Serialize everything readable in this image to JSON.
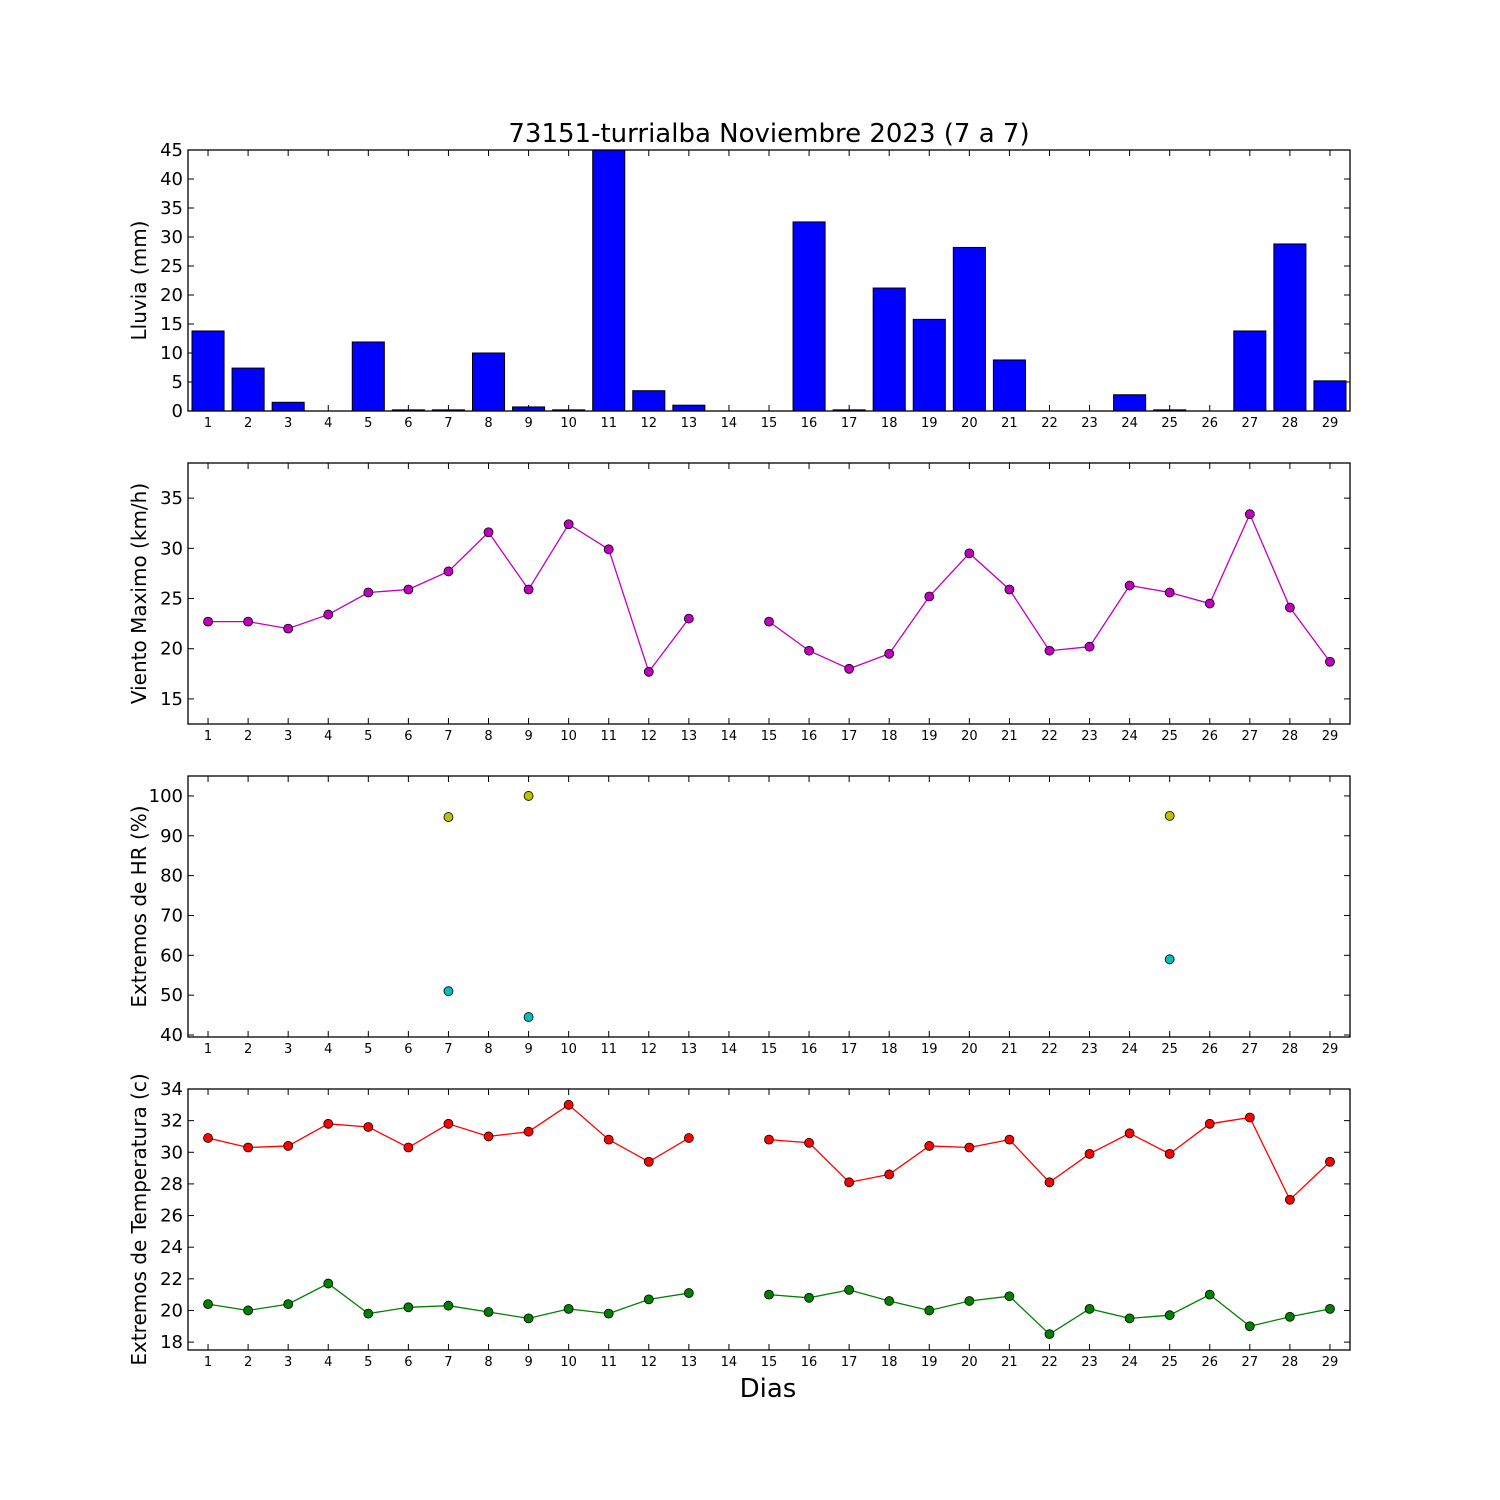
{
  "title": "73151-turrialba Noviembre 2023  (7 a 7)",
  "colors": {
    "rain_bar": "#0000ff",
    "wind": "#bf00bf",
    "hr_max": "#bfbf00",
    "hr_min": "#00bfbf",
    "temp_max": "#ff0000",
    "temp_min": "#008000"
  },
  "chart_data": [
    {
      "type": "bar",
      "ylabel": "Lluvia (mm)",
      "ylim": [
        0,
        45
      ],
      "yticks": [
        0,
        5,
        10,
        15,
        20,
        25,
        30,
        35,
        40,
        45
      ],
      "categories": [
        "1",
        "2",
        "3",
        "4",
        "5",
        "6",
        "7",
        "8",
        "9",
        "10",
        "11",
        "12",
        "13",
        "14",
        "15",
        "16",
        "17",
        "18",
        "19",
        "20",
        "21",
        "22",
        "23",
        "24",
        "25",
        "26",
        "27",
        "28",
        "29"
      ],
      "values": [
        13.8,
        7.4,
        1.5,
        0,
        11.9,
        0.2,
        0.2,
        10.0,
        0.7,
        0.2,
        45.0,
        3.5,
        1.0,
        0,
        0,
        32.6,
        0.2,
        21.2,
        15.8,
        28.2,
        8.8,
        0,
        0,
        2.8,
        0.2,
        0,
        13.8,
        28.8,
        5.2
      ]
    },
    {
      "type": "line",
      "ylabel": "Viento Maximo (km/h)",
      "ylim": [
        12.5,
        38.5
      ],
      "yticks": [
        15,
        20,
        25,
        30,
        35
      ],
      "x": [
        "1",
        "2",
        "3",
        "4",
        "5",
        "6",
        "7",
        "8",
        "9",
        "10",
        "11",
        "12",
        "13",
        "14",
        "15",
        "16",
        "17",
        "18",
        "19",
        "20",
        "21",
        "22",
        "23",
        "24",
        "25",
        "26",
        "27",
        "28",
        "29"
      ],
      "series": [
        {
          "values": [
            22.7,
            22.7,
            22.0,
            23.4,
            25.6,
            25.9,
            27.7,
            31.6,
            25.9,
            32.4,
            29.9,
            17.7,
            23.0,
            null,
            22.7,
            19.8,
            18.0,
            19.5,
            25.2,
            29.5,
            25.9,
            19.8,
            20.2,
            26.3,
            25.6,
            24.5,
            33.4,
            24.1,
            18.7
          ]
        }
      ]
    },
    {
      "type": "scatter",
      "ylabel": "Extremos de HR (%)",
      "ylim": [
        39.5,
        105
      ],
      "yticks": [
        40,
        50,
        60,
        70,
        80,
        90,
        100
      ],
      "x": [
        "1",
        "2",
        "3",
        "4",
        "5",
        "6",
        "7",
        "8",
        "9",
        "10",
        "11",
        "12",
        "13",
        "14",
        "15",
        "16",
        "17",
        "18",
        "19",
        "20",
        "21",
        "22",
        "23",
        "24",
        "25",
        "26",
        "27",
        "28",
        "29"
      ],
      "series": [
        {
          "values": [
            null,
            null,
            null,
            null,
            null,
            null,
            94.7,
            null,
            100.0,
            null,
            null,
            null,
            null,
            null,
            null,
            null,
            null,
            null,
            null,
            null,
            null,
            null,
            null,
            null,
            95.0,
            null,
            null,
            null,
            null
          ]
        },
        {
          "values": [
            null,
            null,
            null,
            null,
            null,
            null,
            51.0,
            null,
            44.5,
            null,
            null,
            null,
            null,
            null,
            null,
            null,
            null,
            null,
            null,
            null,
            null,
            null,
            null,
            null,
            59.0,
            null,
            null,
            null,
            null
          ]
        }
      ]
    },
    {
      "type": "line",
      "ylabel": "Extremos de Temperatura (c)",
      "xlabel": "Dias",
      "ylim": [
        17.5,
        34
      ],
      "yticks": [
        18,
        20,
        22,
        24,
        26,
        28,
        30,
        32,
        34
      ],
      "x": [
        "1",
        "2",
        "3",
        "4",
        "5",
        "6",
        "7",
        "8",
        "9",
        "10",
        "11",
        "12",
        "13",
        "14",
        "15",
        "16",
        "17",
        "18",
        "19",
        "20",
        "21",
        "22",
        "23",
        "24",
        "25",
        "26",
        "27",
        "28",
        "29"
      ],
      "series": [
        {
          "values": [
            30.9,
            30.3,
            30.4,
            31.8,
            31.6,
            30.3,
            31.8,
            31.0,
            31.3,
            33.0,
            30.8,
            29.4,
            30.9,
            null,
            30.8,
            30.6,
            28.1,
            28.6,
            30.4,
            30.3,
            30.8,
            28.1,
            29.9,
            31.2,
            29.9,
            31.8,
            32.2,
            27.0,
            29.4
          ]
        },
        {
          "values": [
            20.4,
            20.0,
            20.4,
            21.7,
            19.8,
            20.2,
            20.3,
            19.9,
            19.5,
            20.1,
            19.8,
            20.7,
            21.1,
            null,
            21.0,
            20.8,
            21.3,
            20.6,
            20.0,
            20.6,
            20.9,
            18.5,
            20.1,
            19.5,
            19.7,
            21.0,
            19.0,
            19.6,
            20.1
          ]
        }
      ]
    }
  ]
}
